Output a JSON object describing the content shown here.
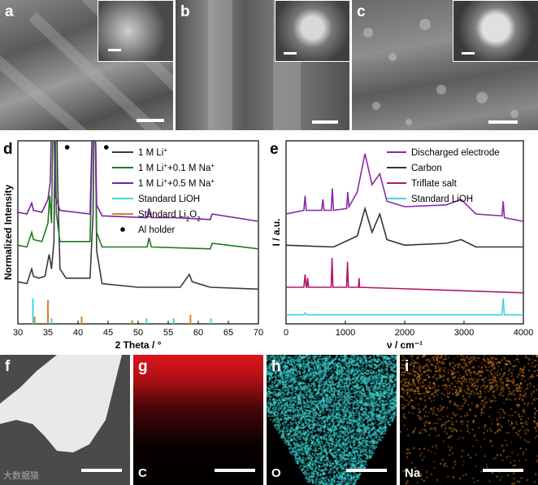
{
  "panels": {
    "a": "a",
    "b": "b",
    "c": "c",
    "d": "d",
    "e": "e",
    "f": "f",
    "g": "g",
    "h": "h",
    "i": "i"
  },
  "maps": {
    "g": "C",
    "h": "O",
    "i": "Na"
  },
  "colors": {
    "li": "#3a3a3a",
    "li_na01": "#1e7a1e",
    "li_na05": "#7a1fa2",
    "lioh": "#3fd6e0",
    "li2o2": "#d2862a",
    "discharged": "#8a2aa8",
    "carbon": "#333333",
    "triflate": "#b0186a",
    "std_lioh": "#3fd6e0",
    "map_c": "#e0141c",
    "map_o": "#3fe0e0",
    "map_na": "#f08a24"
  },
  "legend_d": [
    {
      "pre": "1 M Li",
      "sup": "+",
      "post": ""
    },
    {
      "pre": "1 M Li",
      "sup": "+",
      "post": "+0.1 M Na",
      "sup2": "+"
    },
    {
      "pre": "1 M Li",
      "sup": "+",
      "post": "+0.5 M Na",
      "sup2": "+"
    },
    {
      "pre": "Standard LiOH"
    },
    {
      "pre": "Standard Li",
      "sub": "2",
      "post": "O",
      "sub2": "2"
    },
    {
      "pre": "Al holder"
    }
  ],
  "legend_e": [
    "Discharged electrode",
    "Carbon",
    "Triflate salt",
    "Standard LiOH"
  ],
  "watermark": "大数据猿",
  "chart_data": [
    {
      "type": "line",
      "panel": "d",
      "xlabel": "2 Theta / °",
      "ylabel": "Normalized Intensity",
      "xlim": [
        30,
        70
      ],
      "xticks": [
        30,
        35,
        40,
        45,
        50,
        55,
        60,
        65,
        70
      ],
      "series": [
        {
          "name": "1 M Li+",
          "color": "#3a3a3a",
          "offset": 0.18,
          "points": [
            [
              30,
              0.23
            ],
            [
              31.5,
              0.22
            ],
            [
              32.3,
              0.3
            ],
            [
              32.6,
              0.26
            ],
            [
              33.5,
              0.25
            ],
            [
              34.5,
              0.26
            ],
            [
              35.2,
              0.38
            ],
            [
              35.6,
              0.3
            ],
            [
              36.0,
              0.45
            ],
            [
              36.3,
              1.5
            ],
            [
              36.6,
              0.8
            ],
            [
              37.0,
              0.3
            ],
            [
              38,
              0.25
            ],
            [
              42,
              0.25
            ],
            [
              42.5,
              0.6
            ],
            [
              42.8,
              1.5
            ],
            [
              43.1,
              0.4
            ],
            [
              44,
              0.22
            ],
            [
              50,
              0.2
            ],
            [
              57,
              0.2
            ],
            [
              58.5,
              0.27
            ],
            [
              59,
              0.23
            ],
            [
              62,
              0.2
            ],
            [
              70,
              0.19
            ]
          ]
        },
        {
          "name": "1 M Li+ +0.1 M Na+",
          "color": "#1e7a1e",
          "offset": 0.38,
          "points": [
            [
              30,
              0.43
            ],
            [
              31.5,
              0.42
            ],
            [
              32.3,
              0.5
            ],
            [
              32.6,
              0.46
            ],
            [
              34,
              0.45
            ],
            [
              35.0,
              0.55
            ],
            [
              35.3,
              0.7
            ],
            [
              35.6,
              0.55
            ],
            [
              36.0,
              1.5
            ],
            [
              36.4,
              0.6
            ],
            [
              37,
              0.45
            ],
            [
              42,
              0.45
            ],
            [
              42.7,
              1.5
            ],
            [
              43.1,
              0.5
            ],
            [
              44,
              0.42
            ],
            [
              51.5,
              0.42
            ],
            [
              51.8,
              0.47
            ],
            [
              52.2,
              0.42
            ],
            [
              62,
              0.41
            ],
            [
              62.3,
              0.44
            ],
            [
              70,
              0.41
            ]
          ]
        },
        {
          "name": "1 M Li+ +0.5 M Na+",
          "color": "#7a1fa2",
          "offset": 0.55,
          "points": [
            [
              30,
              0.61
            ],
            [
              31.5,
              0.6
            ],
            [
              32.3,
              0.66
            ],
            [
              32.6,
              0.62
            ],
            [
              34,
              0.61
            ],
            [
              35,
              0.68
            ],
            [
              35.4,
              0.78
            ],
            [
              35.8,
              1.5
            ],
            [
              36.2,
              0.7
            ],
            [
              37,
              0.62
            ],
            [
              42,
              0.6
            ],
            [
              42.7,
              1.5
            ],
            [
              43.1,
              0.65
            ],
            [
              44,
              0.59
            ],
            [
              51.5,
              0.58
            ],
            [
              51.8,
              0.63
            ],
            [
              52.2,
              0.58
            ],
            [
              56,
              0.58
            ],
            [
              62,
              0.57
            ],
            [
              62.3,
              0.6
            ],
            [
              70,
              0.56
            ]
          ]
        }
      ],
      "sticks": [
        {
          "name": "Standard LiOH",
          "color": "#3fd6e0",
          "x": [
            32.5,
            35.6,
            51.4,
            55.9,
            62.1
          ],
          "h": [
            0.14,
            0.03,
            0.03,
            0.03,
            0.03
          ]
        },
        {
          "name": "Standard Li2O2",
          "color": "#d2862a",
          "x": [
            32.8,
            35.0,
            40.6,
            49.0,
            58.7
          ],
          "h": [
            0.04,
            0.13,
            0.04,
            0.02,
            0.05
          ]
        }
      ],
      "markers": {
        "name": "Al holder",
        "x": [
          38.2,
          44.7
        ]
      }
    },
    {
      "type": "line",
      "panel": "e",
      "xlabel": "ν / cm⁻¹",
      "ylabel": "I / a.u.",
      "xlim": [
        0,
        4000
      ],
      "xticks": [
        0,
        1000,
        2000,
        3000,
        4000
      ],
      "series": [
        {
          "name": "Discharged electrode",
          "color": "#8a2aa8",
          "points": [
            [
              0,
              0.6
            ],
            [
              300,
              0.62
            ],
            [
              320,
              0.7
            ],
            [
              340,
              0.62
            ],
            [
              600,
              0.62
            ],
            [
              620,
              0.68
            ],
            [
              640,
              0.62
            ],
            [
              760,
              0.62
            ],
            [
              780,
              0.74
            ],
            [
              800,
              0.62
            ],
            [
              1020,
              0.63
            ],
            [
              1040,
              0.72
            ],
            [
              1060,
              0.64
            ],
            [
              1200,
              0.72
            ],
            [
              1330,
              0.93
            ],
            [
              1450,
              0.76
            ],
            [
              1580,
              0.82
            ],
            [
              1700,
              0.67
            ],
            [
              2000,
              0.64
            ],
            [
              2700,
              0.65
            ],
            [
              2950,
              0.68
            ],
            [
              3200,
              0.6
            ],
            [
              3640,
              0.59
            ],
            [
              3660,
              0.67
            ],
            [
              3680,
              0.58
            ],
            [
              4000,
              0.56
            ]
          ]
        },
        {
          "name": "Carbon",
          "color": "#333333",
          "points": [
            [
              0,
              0.43
            ],
            [
              800,
              0.42
            ],
            [
              1200,
              0.48
            ],
            [
              1330,
              0.63
            ],
            [
              1450,
              0.5
            ],
            [
              1580,
              0.6
            ],
            [
              1700,
              0.46
            ],
            [
              2000,
              0.43
            ],
            [
              2700,
              0.44
            ],
            [
              2950,
              0.46
            ],
            [
              3200,
              0.42
            ],
            [
              4000,
              0.42
            ]
          ]
        },
        {
          "name": "Triflate salt",
          "color": "#b0186a",
          "points": [
            [
              0,
              0.2
            ],
            [
              300,
              0.2
            ],
            [
              320,
              0.27
            ],
            [
              340,
              0.2
            ],
            [
              350,
              0.2
            ],
            [
              365,
              0.25
            ],
            [
              380,
              0.2
            ],
            [
              760,
              0.2
            ],
            [
              775,
              0.36
            ],
            [
              790,
              0.2
            ],
            [
              1020,
              0.2
            ],
            [
              1035,
              0.34
            ],
            [
              1050,
              0.2
            ],
            [
              1220,
              0.2
            ],
            [
              1230,
              0.25
            ],
            [
              1240,
              0.2
            ],
            [
              4000,
              0.17
            ]
          ]
        },
        {
          "name": "Standard LiOH",
          "color": "#3fd6e0",
          "points": [
            [
              0,
              0.05
            ],
            [
              300,
              0.05
            ],
            [
              320,
              0.06
            ],
            [
              340,
              0.05
            ],
            [
              3640,
              0.05
            ],
            [
              3660,
              0.14
            ],
            [
              3680,
              0.05
            ],
            [
              4000,
              0.05
            ]
          ]
        }
      ]
    }
  ]
}
